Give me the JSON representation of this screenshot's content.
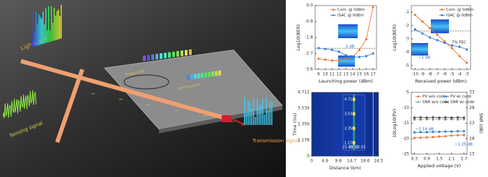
{
  "illustration": {
    "labels": [
      "Lightwave",
      "Sensing signal",
      "Transmission signal",
      "Phase shift",
      "Sensing area"
    ]
  },
  "chart_data": [
    {
      "type": "line",
      "xlabel": "Launching power (dBm)",
      "ylabel": "Log10(BER)",
      "x": [
        9,
        10,
        11,
        12,
        13,
        14,
        15,
        16,
        17
      ],
      "xlim": [
        8.5,
        17.5
      ],
      "xticks": [
        9,
        10,
        11,
        12,
        13,
        14,
        15,
        16,
        17
      ],
      "ylim": [
        -3.6,
        0
      ],
      "yticks": [
        -3.6,
        -2.7,
        -1.8,
        -0.9,
        {
          "value": 0,
          "label": "0.0"
        }
      ],
      "legend": "upper left",
      "threshold": -2.42,
      "annotations": [
        "1 dB"
      ],
      "series": [
        {
          "name": "Com. @ 0dBm",
          "color": "#f07030",
          "values": [
            -3.0,
            -3.05,
            -3.1,
            -3.1,
            -3.0,
            -2.9,
            -2.5,
            -1.9,
            -0.1
          ]
        },
        {
          "name": "ISAC @ 0dBm",
          "color": "#3a7fd0",
          "values": [
            -2.4,
            -2.45,
            -2.5,
            -2.6,
            -2.8,
            -2.9,
            -2.9,
            -2.85,
            -2.7
          ]
        }
      ]
    },
    {
      "type": "line",
      "xlabel": "Received power (dBm)",
      "ylabel": "Log10(BER)",
      "x": [
        -10,
        -9,
        -8,
        -7,
        -6,
        -5,
        -4,
        -3
      ],
      "xlim": [
        -10.5,
        -2.5
      ],
      "xticks": [
        -10,
        -9,
        -8,
        -7,
        -6,
        -5,
        -4,
        -3
      ],
      "ylim": [
        -5.3,
        -0.5
      ],
      "yticks": [
        -5,
        -4,
        -3,
        -2,
        -1
      ],
      "legend": "upper right",
      "threshold": -2.42,
      "annotations": [
        "7% FEC",
        "~1 dB"
      ],
      "series": [
        {
          "name": "Com. @ 0dBm",
          "color": "#f07030",
          "values": [
            -1.2,
            -1.7,
            -2.2,
            -2.7,
            -3.2,
            -3.7,
            -4.3,
            -4.8
          ]
        },
        {
          "name": "ISAC @ 0dBm",
          "color": "#3a7fd0",
          "values": [
            -2.3,
            -2.6,
            -2.9,
            -3.1,
            -3.3,
            -3.5,
            -3.6,
            -3.8
          ]
        }
      ]
    },
    {
      "type": "heatmap",
      "xlabel": "Distance (km)",
      "ylabel": "Time (ms)",
      "xlim": [
        0,
        24.5
      ],
      "xticks": [
        0,
        4.9,
        9.8,
        14.7,
        19.6,
        24.5
      ],
      "ylim": [
        0,
        4.712
      ],
      "yticks": [
        0,
        1.178,
        2.356,
        3.534,
        4.712
      ],
      "inset_xlim": [
        22.48,
        22.54
      ],
      "inset_xticks": [
        22.49,
        22.51,
        22.53
      ],
      "inset_ylim": [
        0.6,
        5.1
      ],
      "inset_yticks": [
        1.178,
        2.356,
        3.534,
        4.712
      ]
    },
    {
      "type": "line",
      "xlabel": "Applied voltage (V)",
      "ylabel": "10Log10(PV)",
      "y2label": "SNR (dB)",
      "x": [
        0.3,
        0.6,
        0.9,
        1.2,
        1.5,
        1.8,
        2.1,
        2.4,
        2.7
      ],
      "xlim": [
        0.15,
        2.85
      ],
      "xticks": [
        0.3,
        0.9,
        1.5,
        2.1,
        2.7
      ],
      "ylim": [
        -25,
        -5
      ],
      "yticks": [
        -25,
        -20,
        -15,
        -10,
        -5
      ],
      "y2lim": [
        13,
        33
      ],
      "y2ticks": [
        13,
        18,
        23,
        28,
        33
      ],
      "legend": "upper center",
      "annotations": [
        "~2.14 dB",
        "~1.25 dB"
      ],
      "series": [
        {
          "name": "PV w/o code",
          "color": "#f07030",
          "values": [
            -19.8,
            -19.7,
            -19.6,
            -19.5,
            -19.3,
            -19.2,
            -19.0,
            -18.9,
            -18.8
          ]
        },
        {
          "name": "PV w/ code",
          "color": "#3a7fd0",
          "values": [
            -18.0,
            -17.9,
            -17.9,
            -17.8,
            -17.8,
            -17.7,
            -17.7,
            -17.6,
            -17.6
          ]
        },
        {
          "name": "SNR w/o code",
          "color": "#888888",
          "dashed": true,
          "axis": "y2",
          "values": [
            24.2,
            24.2,
            24.3,
            24.2,
            24.3,
            24.2,
            24.3,
            24.2,
            24.3
          ]
        },
        {
          "name": "SNR w/ code",
          "color": "#555555",
          "axis": "y2",
          "values": [
            24.8,
            24.9,
            24.8,
            24.9,
            24.8,
            24.9,
            24.8,
            24.9,
            24.8
          ]
        }
      ]
    }
  ]
}
